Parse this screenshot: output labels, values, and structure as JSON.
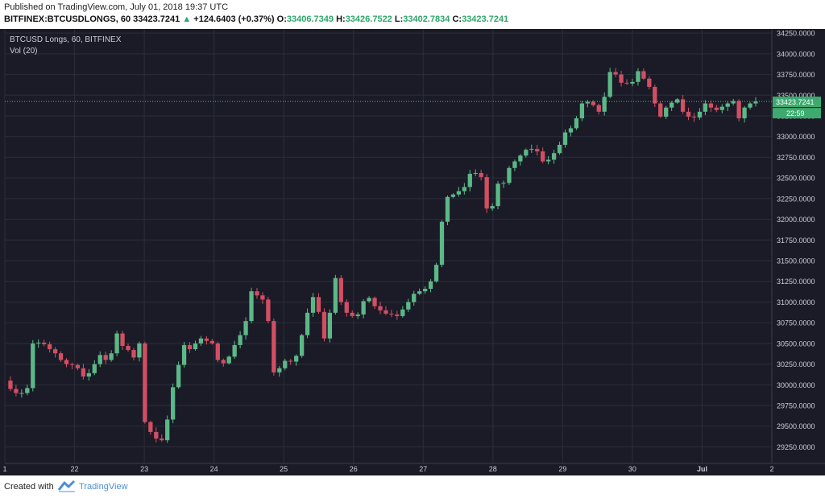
{
  "header": {
    "published": "Published on TradingView.com, July 01, 2018 19:37 UTC",
    "symbol": "BITFINEX:BTCUSDLONGS, 60",
    "last": "33423.7241",
    "change": "+124.6403 (+0.37%)",
    "o_label": "O:",
    "o": "33406.7349",
    "h_label": "H:",
    "h": "33426.7522",
    "l_label": "L:",
    "l": "33402.7834",
    "c_label": "C:",
    "c": "33423.7241"
  },
  "legend": {
    "title": "BTCUSD Longs, 60, BITFINEX",
    "indicator": "Vol (20)"
  },
  "footer": {
    "created": "Created with",
    "brand": "TradingView",
    "logo_icon": "tradingview-logo-icon"
  },
  "colors": {
    "bg": "#1a1b27",
    "up": "#5cb887",
    "down": "#d24f63",
    "grid": "#2b2e3b",
    "axis": "#c9ccd6",
    "tag": "#3daa6f"
  },
  "chart_data": {
    "type": "candlestick",
    "title": "BTCUSD Longs, 60, BITFINEX",
    "ylim": [
      29050,
      34300
    ],
    "y_ticks": [
      "34250.0000",
      "34000.0000",
      "33750.0000",
      "33500.0000",
      "33250.0000",
      "33000.0000",
      "32750.0000",
      "32500.0000",
      "32250.0000",
      "32000.0000",
      "31750.0000",
      "31500.0000",
      "31250.0000",
      "31000.0000",
      "30750.0000",
      "30500.0000",
      "30250.0000",
      "30000.0000",
      "29750.0000",
      "29500.0000",
      "29250.0000"
    ],
    "x_ticks": [
      "1",
      "22",
      "23",
      "24",
      "25",
      "26",
      "27",
      "28",
      "29",
      "30",
      "Jul",
      "2"
    ],
    "last_price_label": "33423.7241",
    "countdown_label": "22:59",
    "last_price": 33423.7241,
    "anchors": [
      [
        0,
        30050
      ],
      [
        1,
        29950
      ],
      [
        2,
        29900
      ],
      [
        3,
        29900
      ],
      [
        4,
        29960
      ],
      [
        5,
        30500
      ],
      [
        6,
        30510
      ],
      [
        7,
        30490
      ],
      [
        8,
        30430
      ],
      [
        9,
        30380
      ],
      [
        10,
        30300
      ],
      [
        11,
        30250
      ],
      [
        12,
        30240
      ],
      [
        13,
        30200
      ],
      [
        14,
        30100
      ],
      [
        15,
        30140
      ],
      [
        16,
        30250
      ],
      [
        17,
        30360
      ],
      [
        18,
        30300
      ],
      [
        19,
        30380
      ],
      [
        20,
        30620
      ],
      [
        21,
        30470
      ],
      [
        22,
        30420
      ],
      [
        23,
        30330
      ],
      [
        24,
        30500
      ],
      [
        25,
        29550
      ],
      [
        26,
        29430
      ],
      [
        27,
        29350
      ],
      [
        28,
        29330
      ],
      [
        29,
        29580
      ],
      [
        30,
        29970
      ],
      [
        31,
        30240
      ],
      [
        32,
        30480
      ],
      [
        33,
        30430
      ],
      [
        34,
        30500
      ],
      [
        35,
        30560
      ],
      [
        36,
        30530
      ],
      [
        37,
        30500
      ],
      [
        38,
        30300
      ],
      [
        39,
        30260
      ],
      [
        40,
        30340
      ],
      [
        41,
        30480
      ],
      [
        42,
        30600
      ],
      [
        43,
        30770
      ],
      [
        44,
        31130
      ],
      [
        45,
        31080
      ],
      [
        46,
        31030
      ],
      [
        47,
        30770
      ],
      [
        48,
        30150
      ],
      [
        49,
        30200
      ],
      [
        50,
        30290
      ],
      [
        51,
        30280
      ],
      [
        52,
        30350
      ],
      [
        53,
        30600
      ],
      [
        54,
        30870
      ],
      [
        55,
        31060
      ],
      [
        56,
        30880
      ],
      [
        57,
        30560
      ],
      [
        58,
        30870
      ],
      [
        59,
        31290
      ],
      [
        60,
        31000
      ],
      [
        61,
        30870
      ],
      [
        62,
        30830
      ],
      [
        63,
        30850
      ],
      [
        64,
        31010
      ],
      [
        65,
        31050
      ],
      [
        66,
        30950
      ],
      [
        67,
        30900
      ],
      [
        68,
        30860
      ],
      [
        69,
        30850
      ],
      [
        70,
        30830
      ],
      [
        71,
        30910
      ],
      [
        72,
        31000
      ],
      [
        73,
        31100
      ],
      [
        74,
        31130
      ],
      [
        75,
        31160
      ],
      [
        76,
        31250
      ],
      [
        77,
        31450
      ],
      [
        78,
        31970
      ],
      [
        79,
        32270
      ],
      [
        80,
        32300
      ],
      [
        81,
        32340
      ],
      [
        82,
        32390
      ],
      [
        83,
        32550
      ],
      [
        84,
        32560
      ],
      [
        85,
        32510
      ],
      [
        86,
        32130
      ],
      [
        87,
        32160
      ],
      [
        88,
        32430
      ],
      [
        89,
        32440
      ],
      [
        90,
        32620
      ],
      [
        91,
        32700
      ],
      [
        92,
        32770
      ],
      [
        93,
        32840
      ],
      [
        94,
        32850
      ],
      [
        95,
        32820
      ],
      [
        96,
        32700
      ],
      [
        97,
        32720
      ],
      [
        98,
        32800
      ],
      [
        99,
        32900
      ],
      [
        100,
        33050
      ],
      [
        101,
        33100
      ],
      [
        102,
        33220
      ],
      [
        103,
        33400
      ],
      [
        104,
        33420
      ],
      [
        105,
        33380
      ],
      [
        106,
        33300
      ],
      [
        107,
        33480
      ],
      [
        108,
        33780
      ],
      [
        109,
        33750
      ],
      [
        110,
        33650
      ],
      [
        111,
        33640
      ],
      [
        112,
        33660
      ],
      [
        113,
        33790
      ],
      [
        114,
        33700
      ],
      [
        115,
        33600
      ],
      [
        116,
        33400
      ],
      [
        117,
        33240
      ],
      [
        118,
        33350
      ],
      [
        119,
        33410
      ],
      [
        120,
        33450
      ],
      [
        121,
        33300
      ],
      [
        122,
        33240
      ],
      [
        123,
        33230
      ],
      [
        124,
        33300
      ],
      [
        125,
        33400
      ],
      [
        126,
        33350
      ],
      [
        127,
        33320
      ],
      [
        128,
        33360
      ],
      [
        129,
        33400
      ],
      [
        130,
        33430
      ],
      [
        131,
        33220
      ],
      [
        132,
        33350
      ],
      [
        133,
        33400
      ],
      [
        134,
        33423
      ]
    ]
  }
}
